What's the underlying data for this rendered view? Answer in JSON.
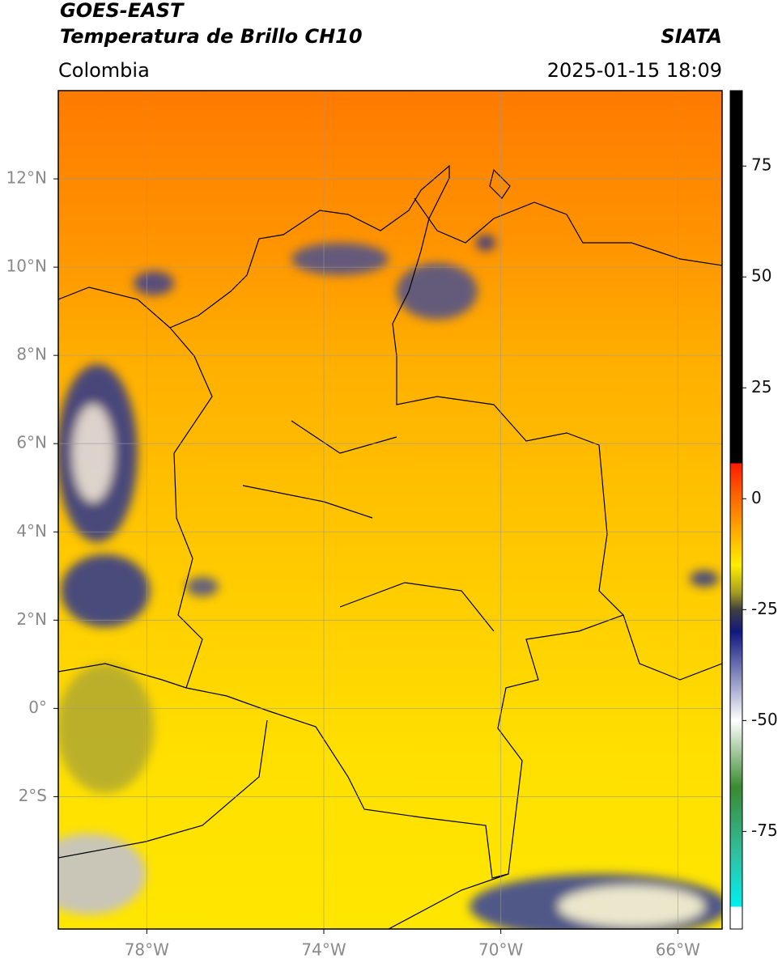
{
  "header": {
    "title": "GOES-EAST",
    "subtitle": "Temperatura de Brillo CH10",
    "region": "Colombia",
    "source": "SIATA",
    "datetime": "2025-01-15 18:09"
  },
  "map": {
    "xlim": [
      -80,
      -65
    ],
    "ylim": [
      -5,
      14
    ],
    "grid": true,
    "xticks": [
      {
        "value": -78,
        "label": "78°W"
      },
      {
        "value": -74,
        "label": "74°W"
      },
      {
        "value": -70,
        "label": "70°W"
      },
      {
        "value": -66,
        "label": "66°W"
      }
    ],
    "yticks": [
      {
        "value": 12,
        "label": "12°N"
      },
      {
        "value": 10,
        "label": "10°N"
      },
      {
        "value": 8,
        "label": "8°N"
      },
      {
        "value": 6,
        "label": "6°N"
      },
      {
        "value": 4,
        "label": "4°N"
      },
      {
        "value": 2,
        "label": "2°N"
      },
      {
        "value": 0,
        "label": "0°"
      },
      {
        "value": -2,
        "label": "2°S"
      }
    ]
  },
  "colorbar": {
    "lim": [
      -97,
      92
    ],
    "ticks": [
      75,
      50,
      25,
      0,
      -25,
      -50,
      -75
    ],
    "colormap": [
      {
        "value": 92,
        "color": "#000000"
      },
      {
        "value": 8,
        "color": "#000000"
      },
      {
        "value": 8,
        "color": "#ff1a00"
      },
      {
        "value": 0,
        "color": "#ff6a00"
      },
      {
        "value": -15,
        "color": "#ffee00"
      },
      {
        "value": -21,
        "color": "#a8a020"
      },
      {
        "value": -25,
        "color": "#404040"
      },
      {
        "value": -30,
        "color": "#101880"
      },
      {
        "value": -50,
        "color": "#ffffff"
      },
      {
        "value": -65,
        "color": "#3a8a30"
      },
      {
        "value": -80,
        "color": "#30c0a0"
      },
      {
        "value": -92,
        "color": "#00f0f0"
      },
      {
        "value": -92,
        "color": "#ffffff"
      },
      {
        "value": -97,
        "color": "#ffffff"
      }
    ]
  }
}
